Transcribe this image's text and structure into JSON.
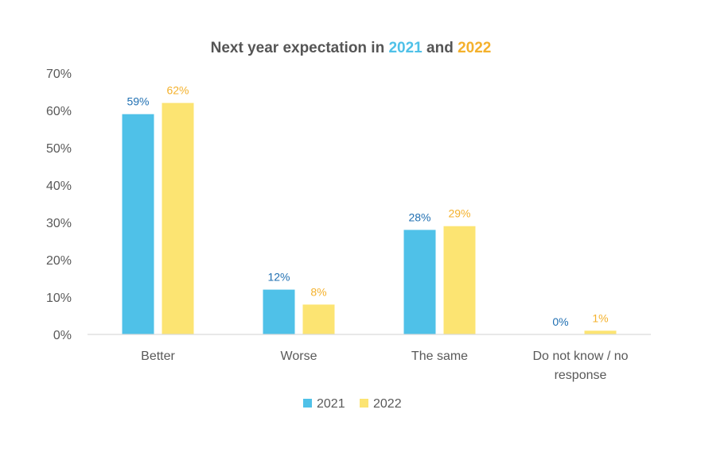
{
  "chart_data": {
    "type": "bar",
    "title": {
      "prefix": "Next year expectation in ",
      "year_a": "2021",
      "middle": " and ",
      "year_b": "2022"
    },
    "categories": [
      [
        "Better"
      ],
      [
        "Worse"
      ],
      [
        "The same"
      ],
      [
        "Do not know / no",
        "response"
      ]
    ],
    "series": [
      {
        "name": "2021",
        "values": [
          59,
          12,
          28,
          0
        ],
        "labels": [
          "59%",
          "12%",
          "28%",
          "0%"
        ],
        "color": "#4FC1E8",
        "label_color": "#1F6FB2"
      },
      {
        "name": "2022",
        "values": [
          62,
          8,
          29,
          1
        ],
        "labels": [
          "62%",
          "8%",
          "29%",
          "1%"
        ],
        "color": "#FCE472",
        "label_color": "#F4B12C"
      }
    ],
    "y_axis": {
      "min": 0,
      "max": 70,
      "step": 10,
      "tick_labels": [
        "0%",
        "10%",
        "20%",
        "30%",
        "40%",
        "50%",
        "60%",
        "70%"
      ]
    },
    "legend": {
      "position": "bottom",
      "entries": [
        "2021",
        "2022"
      ]
    },
    "colors": {
      "title_dark": "#555555",
      "year_a": "#4FC1E8",
      "year_b": "#F4B12C",
      "axis_text": "#595959",
      "axis_line": "#D9D9D9"
    }
  }
}
